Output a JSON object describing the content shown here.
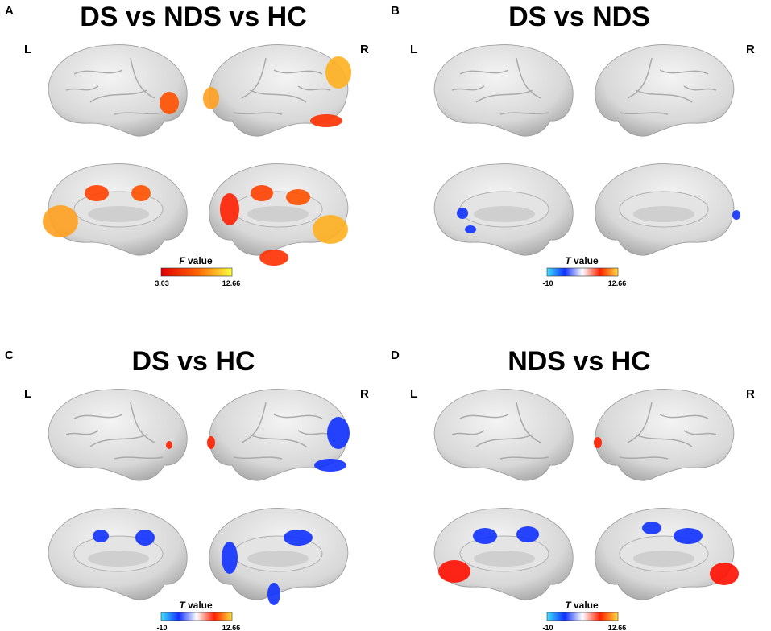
{
  "panels": [
    {
      "letter": "A",
      "title": "DS vs NDS vs HC",
      "left": "L",
      "right": "R",
      "colorbar": {
        "symbol": "F",
        "text": "value",
        "min": "3.03",
        "max": "12.66",
        "colors": [
          "#e00000",
          "#ff6000",
          "#ffff40"
        ]
      }
    },
    {
      "letter": "B",
      "title": "DS vs NDS",
      "left": "L",
      "right": "R",
      "colorbar": {
        "symbol": "T",
        "text": "value",
        "min": "-10",
        "max": "12.66",
        "colors": [
          "#40e0ff",
          "#1030ff",
          "#ffffff",
          "#ff2000",
          "#ffe040"
        ]
      }
    },
    {
      "letter": "C",
      "title": "DS vs HC",
      "left": "L",
      "right": "R",
      "colorbar": {
        "symbol": "T",
        "text": "value",
        "min": "-10",
        "max": "12.66",
        "colors": [
          "#40e0ff",
          "#1030ff",
          "#ffffff",
          "#ff2000",
          "#ffe040"
        ]
      }
    },
    {
      "letter": "D",
      "title": "NDS vs HC",
      "left": "L",
      "right": "R",
      "colorbar": {
        "symbol": "T",
        "text": "value",
        "min": "-10",
        "max": "12.66",
        "colors": [
          "#40e0ff",
          "#1030ff",
          "#ffffff",
          "#ff2000",
          "#ffe040"
        ]
      }
    }
  ]
}
